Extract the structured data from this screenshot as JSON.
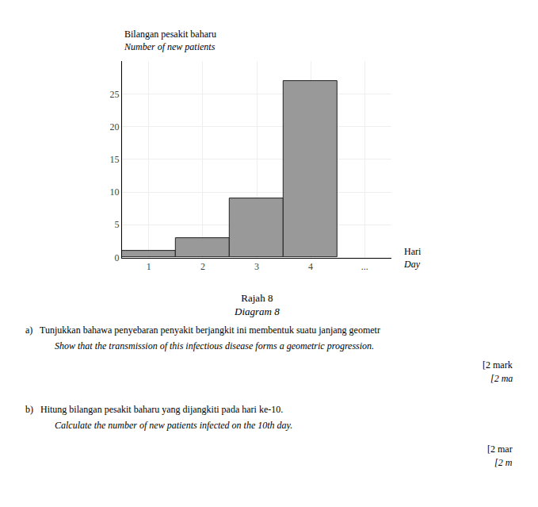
{
  "chart_data": {
    "type": "bar",
    "title": [
      "Rajah 8",
      "Diagram 8"
    ],
    "ylabel": [
      "Bilangan pesakit baharu",
      "Number of new patients"
    ],
    "xlabel": [
      "Hari",
      "Day"
    ],
    "categories": [
      "1",
      "2",
      "3",
      "4",
      "..."
    ],
    "values": [
      1,
      3,
      9,
      27,
      null
    ],
    "color": "#999999",
    "ylim": [
      0,
      30
    ],
    "yticks": [
      0,
      5,
      10,
      15,
      20,
      25
    ],
    "grid": true,
    "annotations": [
      "a)   Tunjukkan bahawa penyebaran penyakit berjangkit ini membentuk suatu janjang geometr",
      "Show that the transmission of this infectious disease forms a geometric progression.",
      "[2 mark",
      "[2 ma",
      "b)   Hitung bilangan pesakit baharu yang dijangkiti pada hari ke-10.",
      "Calculate the number of new patients infected on the 10th day.",
      "[2 mar",
      "[2 m"
    ]
  }
}
